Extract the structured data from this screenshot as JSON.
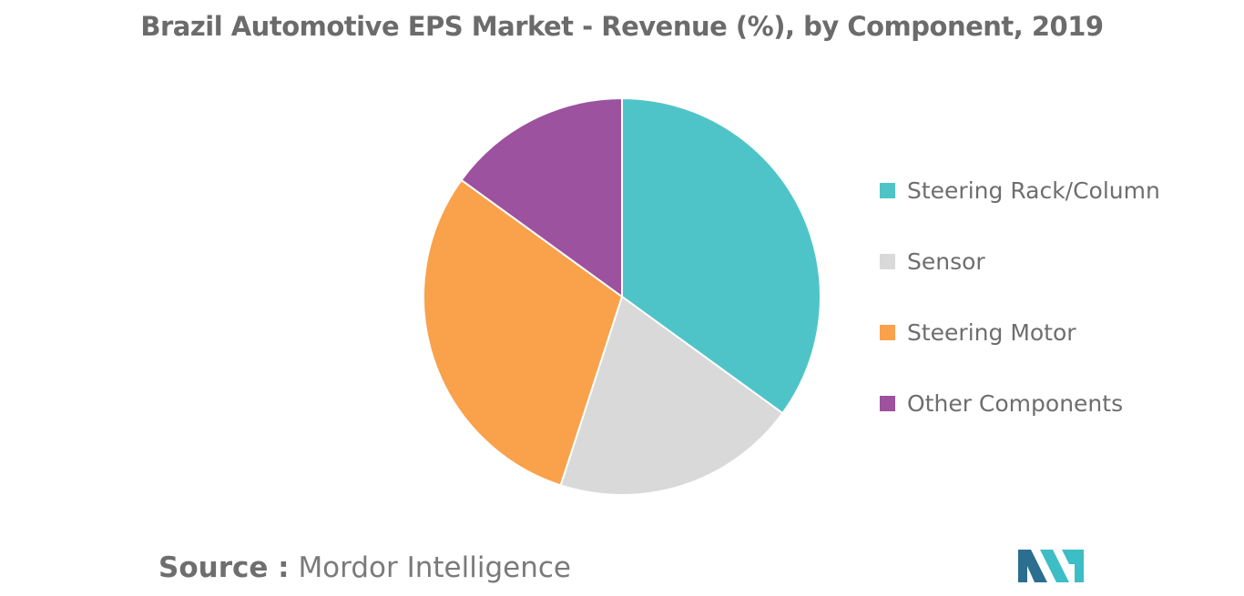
{
  "chart_data": {
    "type": "pie",
    "title": "Brazil Automotive EPS Market - Revenue (%), by Component, 2019",
    "categories": [
      "Steering Rack/Column",
      "Sensor",
      "Steering Motor",
      "Other Components"
    ],
    "values": [
      35,
      20,
      30,
      15
    ],
    "colors": [
      "#4fc4c8",
      "#d9d9d9",
      "#f9a24b",
      "#9c529e"
    ],
    "start_angle_deg": 0,
    "direction": "clockwise",
    "legend_position": "right"
  },
  "source": {
    "prefix": "Source :",
    "text": "Mordor Intelligence"
  },
  "logo": {
    "name": "mordor-intelligence-logo",
    "colors": [
      "#2b6e8f",
      "#3dbdc6"
    ]
  }
}
